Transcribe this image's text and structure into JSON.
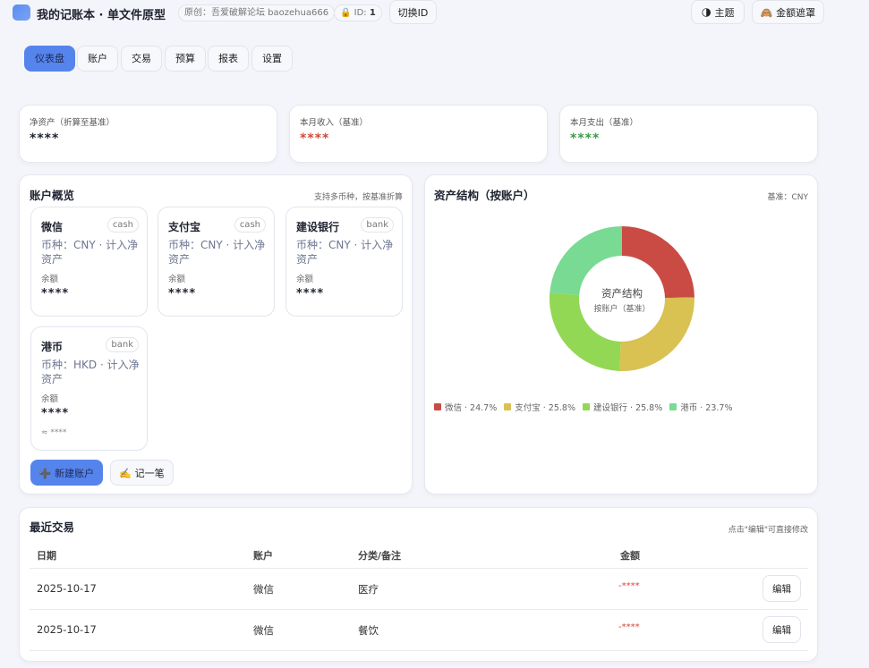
{
  "header": {
    "title": "我的记账本 · 单文件原型",
    "author_badge": "原创：吾爱破解论坛 baozehua666",
    "id_label": "ID:",
    "id_value": "1",
    "switch_id": "切换ID",
    "theme": "主题",
    "mask": "金额遮罩"
  },
  "tabs": [
    {
      "label": "仪表盘",
      "active": true
    },
    {
      "label": "账户"
    },
    {
      "label": "交易"
    },
    {
      "label": "预算"
    },
    {
      "label": "报表"
    },
    {
      "label": "设置"
    }
  ],
  "stats": [
    {
      "label": "净资产（折算至基准）",
      "value": "****",
      "color": "#1f2330"
    },
    {
      "label": "本月收入（基准）",
      "value": "****",
      "color": "#d04a3c"
    },
    {
      "label": "本月支出（基准）",
      "value": "****",
      "color": "#3a9a4a"
    }
  ],
  "accounts_panel": {
    "title": "账户概览",
    "note": "支持多币种，按基准折算",
    "balance_label": "余额",
    "accounts": [
      {
        "name": "微信",
        "type": "cash",
        "currency": "币种：CNY · 计入净资产",
        "balance": "****"
      },
      {
        "name": "支付宝",
        "type": "cash",
        "currency": "币种：CNY · 计入净资产",
        "balance": "****"
      },
      {
        "name": "建设银行",
        "type": "bank",
        "currency": "币种：CNY · 计入净资产",
        "balance": "****"
      },
      {
        "name": "港币",
        "type": "bank",
        "currency": "币种：HKD · 计入净资产",
        "balance": "****",
        "approx": "≈ ****"
      }
    ],
    "new_account": "新建账户",
    "record": "记一笔"
  },
  "asset_panel": {
    "title": "资产结构（按账户）",
    "note": "基准：CNY",
    "center_title": "资产结构",
    "center_sub": "按账户（基准）"
  },
  "chart_data": {
    "type": "pie",
    "donut": true,
    "categories": [
      "微信",
      "支付宝",
      "建设银行",
      "港币"
    ],
    "values": [
      24.7,
      25.8,
      25.8,
      23.7
    ],
    "unit": "%",
    "colors": [
      "#c94b44",
      "#d9c152",
      "#92d855",
      "#79da93"
    ],
    "legend": [
      "微信 · 24.7%",
      "支付宝 · 25.8%",
      "建设银行 · 25.8%",
      "港币 · 23.7%"
    ],
    "legend_position": "bottom-left"
  },
  "transactions": {
    "title": "最近交易",
    "note": "点击\"编辑\"可直接修改",
    "headers": [
      "日期",
      "账户",
      "分类/备注",
      "金额"
    ],
    "edit": "编辑",
    "rows": [
      {
        "date": "2025-10-17",
        "account": "微信",
        "category": "医疗",
        "amount": "-****"
      },
      {
        "date": "2025-10-17",
        "account": "微信",
        "category": "餐饮",
        "amount": "-****"
      }
    ]
  }
}
